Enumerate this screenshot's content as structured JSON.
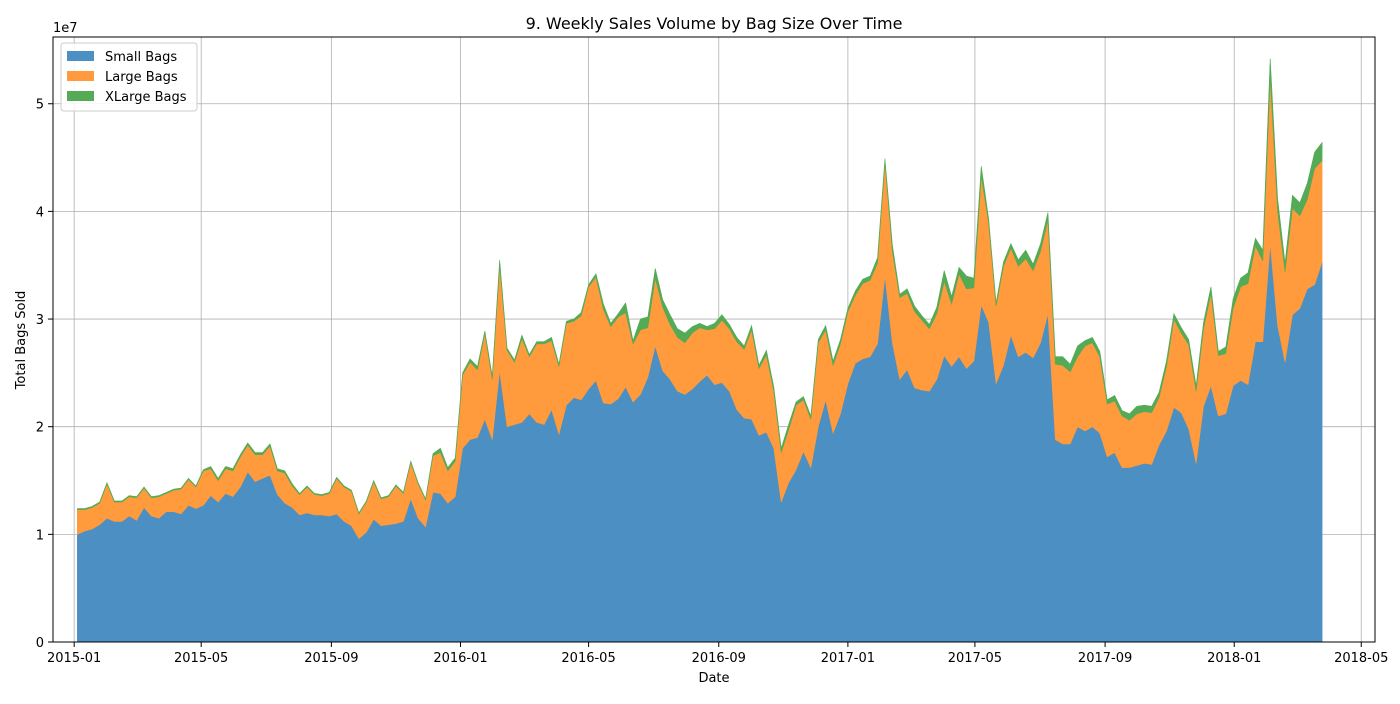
{
  "chart_data": {
    "type": "area",
    "stacked": true,
    "title": "9. Weekly Sales Volume by Bag Size Over Time",
    "xlabel": "Date",
    "ylabel": "Total Bags Sold",
    "y_multiplier_label": "1e7",
    "x_ticks": [
      "2015-01",
      "2015-05",
      "2015-09",
      "2016-01",
      "2016-05",
      "2016-09",
      "2017-01",
      "2017-05",
      "2017-09",
      "2018-01",
      "2018-05"
    ],
    "x_tick_dates": [
      "2015-01-01",
      "2015-05-01",
      "2015-09-01",
      "2016-01-01",
      "2016-05-01",
      "2016-09-01",
      "2017-01-01",
      "2017-05-01",
      "2017-09-01",
      "2018-01-01",
      "2018-05-01"
    ],
    "xlim": [
      "2014-12-12",
      "2018-05-14"
    ],
    "y_ticks": [
      "0",
      "1",
      "2",
      "3",
      "4",
      "5"
    ],
    "y_tick_values": [
      0,
      1,
      2,
      3,
      4,
      5
    ],
    "ylim": [
      0,
      5.62
    ],
    "y_unit": "1e7",
    "grid": true,
    "legend_position": "top-left",
    "x_start": "2015-01-04",
    "x_step_days": 7,
    "series": [
      {
        "name": "Small Bags",
        "color": "#4c8fc2",
        "values": [
          1.0,
          1.03,
          1.05,
          1.09,
          1.15,
          1.12,
          1.12,
          1.17,
          1.13,
          1.25,
          1.17,
          1.15,
          1.21,
          1.21,
          1.19,
          1.27,
          1.24,
          1.27,
          1.36,
          1.3,
          1.38,
          1.35,
          1.44,
          1.58,
          1.49,
          1.52,
          1.55,
          1.37,
          1.29,
          1.25,
          1.18,
          1.2,
          1.18,
          1.18,
          1.17,
          1.19,
          1.12,
          1.08,
          0.96,
          1.02,
          1.14,
          1.08,
          1.09,
          1.1,
          1.12,
          1.33,
          1.15,
          1.07,
          1.39,
          1.38,
          1.29,
          1.35,
          1.8,
          1.88,
          1.9,
          2.07,
          1.88,
          2.52,
          2.0,
          2.02,
          2.04,
          2.12,
          2.04,
          2.02,
          2.16,
          1.93,
          2.2,
          2.27,
          2.25,
          2.35,
          2.43,
          2.22,
          2.21,
          2.26,
          2.37,
          2.23,
          2.3,
          2.46,
          2.75,
          2.52,
          2.44,
          2.33,
          2.3,
          2.35,
          2.42,
          2.48,
          2.39,
          2.41,
          2.33,
          2.16,
          2.08,
          2.07,
          1.92,
          1.95,
          1.8,
          1.3,
          1.48,
          1.6,
          1.77,
          1.62,
          2.0,
          2.25,
          1.94,
          2.12,
          2.4,
          2.59,
          2.63,
          2.65,
          2.77,
          3.4,
          2.78,
          2.44,
          2.53,
          2.36,
          2.34,
          2.33,
          2.44,
          2.66,
          2.56,
          2.65,
          2.54,
          2.61,
          3.13,
          2.97,
          2.4,
          2.57,
          2.85,
          2.65,
          2.69,
          2.64,
          2.78,
          3.05,
          1.88,
          1.84,
          1.84,
          2.0,
          1.96,
          2.0,
          1.94,
          1.72,
          1.76,
          1.62,
          1.62,
          1.64,
          1.66,
          1.65,
          1.83,
          1.96,
          2.18,
          2.13,
          1.98,
          1.66,
          2.19,
          2.38,
          2.1,
          2.12,
          2.38,
          2.43,
          2.39,
          2.79,
          2.79,
          3.7,
          2.94,
          2.6,
          3.04,
          3.1,
          3.28,
          3.32,
          3.53
        ]
      },
      {
        "name": "Large Bags",
        "color": "#ff9a3d",
        "values": [
          0.23,
          0.2,
          0.2,
          0.2,
          0.32,
          0.18,
          0.18,
          0.18,
          0.21,
          0.18,
          0.17,
          0.2,
          0.17,
          0.2,
          0.23,
          0.24,
          0.2,
          0.32,
          0.25,
          0.2,
          0.23,
          0.24,
          0.28,
          0.25,
          0.25,
          0.22,
          0.27,
          0.22,
          0.28,
          0.2,
          0.19,
          0.24,
          0.19,
          0.18,
          0.21,
          0.33,
          0.32,
          0.32,
          0.23,
          0.28,
          0.35,
          0.25,
          0.26,
          0.35,
          0.26,
          0.34,
          0.32,
          0.25,
          0.34,
          0.38,
          0.3,
          0.33,
          0.68,
          0.72,
          0.63,
          0.8,
          0.56,
          0.98,
          0.71,
          0.58,
          0.78,
          0.53,
          0.73,
          0.75,
          0.64,
          0.63,
          0.76,
          0.71,
          0.78,
          0.95,
          0.96,
          0.87,
          0.72,
          0.76,
          0.69,
          0.54,
          0.6,
          0.46,
          0.63,
          0.59,
          0.51,
          0.5,
          0.48,
          0.52,
          0.5,
          0.42,
          0.52,
          0.58,
          0.58,
          0.63,
          0.64,
          0.83,
          0.62,
          0.72,
          0.53,
          0.46,
          0.49,
          0.6,
          0.48,
          0.45,
          0.78,
          0.65,
          0.63,
          0.65,
          0.67,
          0.63,
          0.7,
          0.71,
          0.75,
          1.06,
          0.85,
          0.76,
          0.71,
          0.71,
          0.65,
          0.58,
          0.61,
          0.69,
          0.58,
          0.77,
          0.74,
          0.68,
          1.2,
          0.92,
          0.72,
          0.92,
          0.81,
          0.84,
          0.87,
          0.81,
          0.85,
          0.87,
          0.7,
          0.73,
          0.67,
          0.65,
          0.79,
          0.78,
          0.71,
          0.49,
          0.48,
          0.48,
          0.44,
          0.48,
          0.48,
          0.48,
          0.44,
          0.6,
          0.82,
          0.74,
          0.78,
          0.67,
          0.72,
          0.86,
          0.56,
          0.56,
          0.72,
          0.87,
          0.94,
          0.89,
          0.75,
          1.55,
          1.06,
          0.84,
          0.99,
          0.86,
          0.83,
          1.08,
          0.94
        ]
      },
      {
        "name": "XLarge Bags",
        "color": "#55aa55",
        "values": [
          0.01,
          0.01,
          0.01,
          0.01,
          0.01,
          0.01,
          0.01,
          0.01,
          0.01,
          0.01,
          0.01,
          0.01,
          0.01,
          0.01,
          0.01,
          0.01,
          0.01,
          0.01,
          0.02,
          0.02,
          0.02,
          0.02,
          0.02,
          0.02,
          0.02,
          0.02,
          0.02,
          0.02,
          0.02,
          0.02,
          0.01,
          0.01,
          0.01,
          0.01,
          0.01,
          0.01,
          0.01,
          0.01,
          0.01,
          0.01,
          0.01,
          0.01,
          0.01,
          0.01,
          0.01,
          0.01,
          0.01,
          0.01,
          0.02,
          0.04,
          0.03,
          0.03,
          0.02,
          0.03,
          0.03,
          0.02,
          0.03,
          0.05,
          0.02,
          0.02,
          0.03,
          0.02,
          0.02,
          0.02,
          0.03,
          0.02,
          0.02,
          0.02,
          0.03,
          0.02,
          0.03,
          0.05,
          0.03,
          0.03,
          0.09,
          0.03,
          0.1,
          0.1,
          0.09,
          0.07,
          0.09,
          0.08,
          0.09,
          0.06,
          0.04,
          0.03,
          0.05,
          0.05,
          0.04,
          0.04,
          0.03,
          0.04,
          0.03,
          0.04,
          0.04,
          0.04,
          0.05,
          0.03,
          0.03,
          0.03,
          0.03,
          0.04,
          0.04,
          0.04,
          0.03,
          0.04,
          0.04,
          0.04,
          0.05,
          0.03,
          0.06,
          0.03,
          0.04,
          0.05,
          0.04,
          0.04,
          0.06,
          0.1,
          0.07,
          0.06,
          0.12,
          0.09,
          0.09,
          0.04,
          0.03,
          0.04,
          0.04,
          0.06,
          0.08,
          0.06,
          0.07,
          0.07,
          0.07,
          0.08,
          0.07,
          0.1,
          0.05,
          0.05,
          0.05,
          0.04,
          0.05,
          0.05,
          0.06,
          0.07,
          0.06,
          0.06,
          0.05,
          0.05,
          0.05,
          0.05,
          0.05,
          0.05,
          0.06,
          0.06,
          0.04,
          0.06,
          0.09,
          0.08,
          0.1,
          0.07,
          0.1,
          0.17,
          0.12,
          0.08,
          0.12,
          0.12,
          0.15,
          0.15,
          0.17
        ]
      }
    ]
  }
}
